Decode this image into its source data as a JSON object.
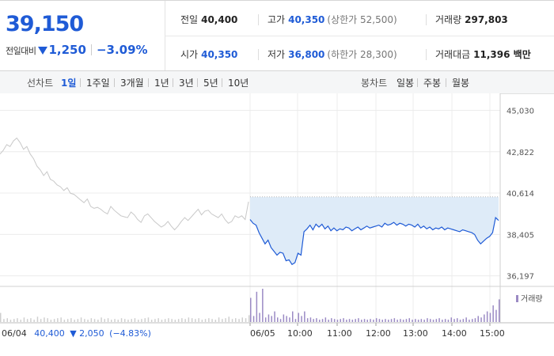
{
  "summary": {
    "current_price": "39,150",
    "change_label": "전일대비",
    "change_amount": "1,250",
    "change_rate": "−3.09%",
    "prev_close_label": "전일",
    "prev_close": "40,400",
    "high_label": "고가",
    "high": "40,350",
    "upper_limit": "(상한가 52,500)",
    "volume_label": "거래량",
    "volume": "297,803",
    "open_label": "시가",
    "open": "40,350",
    "low_label": "저가",
    "low": "36,800",
    "lower_limit": "(하한가 28,300)",
    "amount_label": "거래대금",
    "amount": "11,396 백만",
    "colors": {
      "down": "#1f5bd6",
      "text": "#222222"
    }
  },
  "tabs": {
    "line_label": "선차트",
    "line_periods": [
      {
        "label": "1일",
        "active": true
      },
      {
        "label": "1주일",
        "active": false
      },
      {
        "label": "3개월",
        "active": false
      },
      {
        "label": "1년",
        "active": false
      },
      {
        "label": "3년",
        "active": false
      },
      {
        "label": "5년",
        "active": false
      },
      {
        "label": "10년",
        "active": false
      }
    ],
    "candle_label": "봉차트",
    "candle_periods": [
      {
        "label": "일봉",
        "active": false
      },
      {
        "label": "주봉",
        "active": false
      },
      {
        "label": "월봉",
        "active": false
      }
    ]
  },
  "chart_data": {
    "type": "line",
    "y_ticks": [
      {
        "value": 45030,
        "label": "45,030"
      },
      {
        "value": 42822,
        "label": "42,822"
      },
      {
        "value": 40614,
        "label": "40,614"
      },
      {
        "value": 38405,
        "label": "38,405"
      },
      {
        "value": 36197,
        "label": "36,197"
      }
    ],
    "ylim": [
      35800,
      45600
    ],
    "reference_price": 40400,
    "x_labels": [
      "06/05",
      "10:00",
      "11:00",
      "12:00",
      "13:00",
      "14:00",
      "15:00"
    ],
    "prev_day_info": {
      "date": "06/04",
      "close": "40,400",
      "arrow_change": "2,050",
      "rate": "(−4.83%)"
    },
    "volume_legend": "거래량",
    "series": [
      {
        "day": "06/04",
        "color": "#c8c8c8",
        "price": [
          42700,
          42900,
          43200,
          43100,
          43400,
          43550,
          43300,
          42950,
          43100,
          42700,
          42450,
          42050,
          41850,
          41550,
          41750,
          41350,
          41250,
          41050,
          40950,
          40750,
          40900,
          40600,
          40550,
          40400,
          40250,
          40100,
          40300,
          39900,
          39800,
          39850,
          39750,
          39600,
          39500,
          39900,
          39700,
          39550,
          39400,
          39350,
          39300,
          39600,
          39450,
          39200,
          39050,
          39400,
          39500,
          39300,
          39100,
          38950,
          38800,
          38900,
          39100,
          38850,
          38650,
          38850,
          39100,
          39300,
          39150,
          39350,
          39550,
          39750,
          39450,
          39650,
          39700,
          39500,
          39400,
          39300,
          39500,
          39200,
          39000,
          39100,
          39400,
          39300,
          39400,
          39200,
          40150
        ],
        "volume": [
          12,
          4,
          5,
          3,
          4,
          5,
          3,
          6,
          4,
          5,
          3,
          7,
          4,
          6,
          5,
          3,
          4,
          5,
          6,
          3,
          4,
          5,
          3,
          4,
          6,
          4,
          3,
          5,
          4,
          3,
          6,
          4,
          5,
          3,
          4,
          3,
          5,
          4,
          3,
          4,
          5,
          3,
          4,
          5,
          6,
          3,
          4,
          5,
          3,
          4,
          5,
          4,
          3,
          4,
          5,
          4,
          6,
          5,
          4,
          5,
          3,
          4,
          5,
          4,
          3,
          6,
          4,
          5,
          7,
          4,
          5,
          4,
          6,
          5,
          9
        ]
      },
      {
        "day": "06/05",
        "color": "#1f5bd6",
        "price": [
          39200,
          39000,
          38900,
          38500,
          38200,
          37900,
          38100,
          37700,
          37500,
          37300,
          37450,
          37400,
          37000,
          37050,
          36800,
          36900,
          37400,
          37300,
          38550,
          38700,
          38900,
          38650,
          38950,
          38800,
          38950,
          38700,
          38850,
          38600,
          38750,
          38600,
          38700,
          38650,
          38800,
          38750,
          38600,
          38700,
          38800,
          38650,
          38750,
          38850,
          38750,
          38800,
          38850,
          38900,
          38800,
          39000,
          38900,
          38950,
          39050,
          38900,
          39000,
          38950,
          38850,
          38950,
          38900,
          38800,
          38950,
          38750,
          38850,
          38700,
          38800,
          38650,
          38750,
          38700,
          38800,
          38650,
          38750,
          38700,
          38650,
          38600,
          38550,
          38650,
          38600,
          38550,
          38500,
          38400,
          38100,
          37900,
          38050,
          38200,
          38300,
          38500,
          39300,
          39150
        ],
        "volume": [
          32,
          8,
          40,
          12,
          44,
          6,
          10,
          8,
          14,
          6,
          4,
          10,
          8,
          6,
          14,
          4,
          12,
          8,
          14,
          5,
          6,
          4,
          5,
          3,
          4,
          6,
          3,
          5,
          4,
          3,
          4,
          5,
          3,
          4,
          3,
          4,
          5,
          3,
          4,
          3,
          4,
          3,
          5,
          4,
          3,
          4,
          3,
          4,
          5,
          3,
          4,
          3,
          4,
          5,
          3,
          4,
          3,
          4,
          3,
          5,
          4,
          3,
          4,
          5,
          3,
          4,
          3,
          6,
          4,
          5,
          3,
          4,
          6,
          3,
          4,
          5,
          8,
          6,
          10,
          14,
          12,
          22,
          16,
          30
        ]
      }
    ]
  }
}
